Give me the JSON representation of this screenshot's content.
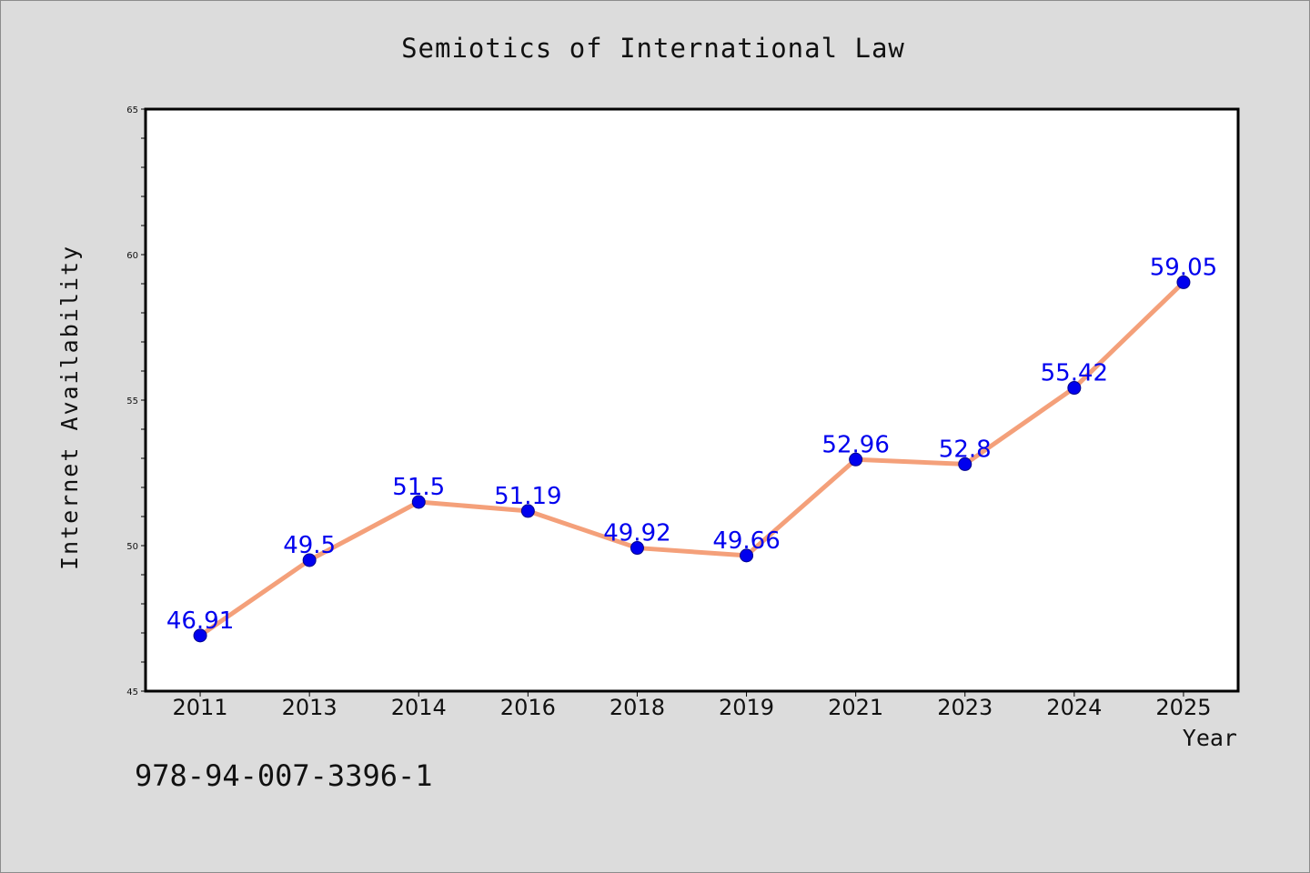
{
  "chart_data": {
    "type": "line",
    "title": "Semiotics of International Law",
    "xlabel": "Year",
    "ylabel": "Internet Availability",
    "categories": [
      "2011",
      "2013",
      "2014",
      "2016",
      "2018",
      "2019",
      "2021",
      "2023",
      "2024",
      "2025"
    ],
    "series": [
      {
        "values": [
          46.91,
          49.5,
          51.5,
          51.19,
          49.92,
          49.66,
          52.96,
          52.8,
          55.42,
          59.05
        ],
        "labels": [
          "46.91",
          "49.5",
          "51.5",
          "51.19",
          "49.92",
          "49.66",
          "52.96",
          "52.8",
          "55.42",
          "59.05"
        ]
      }
    ],
    "ylim": [
      45,
      65
    ],
    "yticks": [
      "45",
      "50",
      "55",
      "60",
      "65"
    ],
    "ytick_values": [
      45,
      50,
      55,
      60,
      65
    ],
    "grid": false,
    "legend": "none",
    "colors": {
      "line": "#f4a07a",
      "marker": "#0000ee",
      "data_label": "#0000ee",
      "plot_background": "#ffffff",
      "figure_background": "#dcdcdc"
    }
  },
  "footnote": "978-94-007-3396-1"
}
